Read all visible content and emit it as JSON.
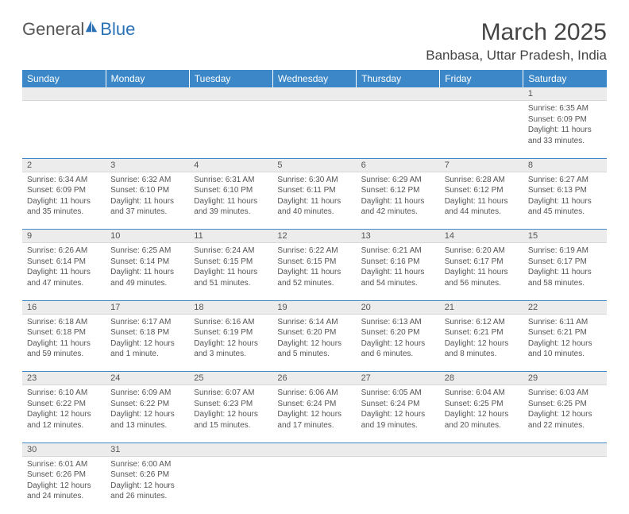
{
  "logo": {
    "general": "General",
    "blue": "Blue"
  },
  "title": "March 2025",
  "location": "Banbasa, Uttar Pradesh, India",
  "colors": {
    "header_bg": "#3b87c8",
    "header_text": "#ffffff",
    "daynum_bg": "#ececec",
    "border": "#3b87c8",
    "body_text": "#555555"
  },
  "dayHeaders": [
    "Sunday",
    "Monday",
    "Tuesday",
    "Wednesday",
    "Thursday",
    "Friday",
    "Saturday"
  ],
  "weeks": [
    [
      null,
      null,
      null,
      null,
      null,
      null,
      {
        "n": "1",
        "sr": "Sunrise: 6:35 AM",
        "ss": "Sunset: 6:09 PM",
        "d1": "Daylight: 11 hours",
        "d2": "and 33 minutes."
      }
    ],
    [
      {
        "n": "2",
        "sr": "Sunrise: 6:34 AM",
        "ss": "Sunset: 6:09 PM",
        "d1": "Daylight: 11 hours",
        "d2": "and 35 minutes."
      },
      {
        "n": "3",
        "sr": "Sunrise: 6:32 AM",
        "ss": "Sunset: 6:10 PM",
        "d1": "Daylight: 11 hours",
        "d2": "and 37 minutes."
      },
      {
        "n": "4",
        "sr": "Sunrise: 6:31 AM",
        "ss": "Sunset: 6:10 PM",
        "d1": "Daylight: 11 hours",
        "d2": "and 39 minutes."
      },
      {
        "n": "5",
        "sr": "Sunrise: 6:30 AM",
        "ss": "Sunset: 6:11 PM",
        "d1": "Daylight: 11 hours",
        "d2": "and 40 minutes."
      },
      {
        "n": "6",
        "sr": "Sunrise: 6:29 AM",
        "ss": "Sunset: 6:12 PM",
        "d1": "Daylight: 11 hours",
        "d2": "and 42 minutes."
      },
      {
        "n": "7",
        "sr": "Sunrise: 6:28 AM",
        "ss": "Sunset: 6:12 PM",
        "d1": "Daylight: 11 hours",
        "d2": "and 44 minutes."
      },
      {
        "n": "8",
        "sr": "Sunrise: 6:27 AM",
        "ss": "Sunset: 6:13 PM",
        "d1": "Daylight: 11 hours",
        "d2": "and 45 minutes."
      }
    ],
    [
      {
        "n": "9",
        "sr": "Sunrise: 6:26 AM",
        "ss": "Sunset: 6:14 PM",
        "d1": "Daylight: 11 hours",
        "d2": "and 47 minutes."
      },
      {
        "n": "10",
        "sr": "Sunrise: 6:25 AM",
        "ss": "Sunset: 6:14 PM",
        "d1": "Daylight: 11 hours",
        "d2": "and 49 minutes."
      },
      {
        "n": "11",
        "sr": "Sunrise: 6:24 AM",
        "ss": "Sunset: 6:15 PM",
        "d1": "Daylight: 11 hours",
        "d2": "and 51 minutes."
      },
      {
        "n": "12",
        "sr": "Sunrise: 6:22 AM",
        "ss": "Sunset: 6:15 PM",
        "d1": "Daylight: 11 hours",
        "d2": "and 52 minutes."
      },
      {
        "n": "13",
        "sr": "Sunrise: 6:21 AM",
        "ss": "Sunset: 6:16 PM",
        "d1": "Daylight: 11 hours",
        "d2": "and 54 minutes."
      },
      {
        "n": "14",
        "sr": "Sunrise: 6:20 AM",
        "ss": "Sunset: 6:17 PM",
        "d1": "Daylight: 11 hours",
        "d2": "and 56 minutes."
      },
      {
        "n": "15",
        "sr": "Sunrise: 6:19 AM",
        "ss": "Sunset: 6:17 PM",
        "d1": "Daylight: 11 hours",
        "d2": "and 58 minutes."
      }
    ],
    [
      {
        "n": "16",
        "sr": "Sunrise: 6:18 AM",
        "ss": "Sunset: 6:18 PM",
        "d1": "Daylight: 11 hours",
        "d2": "and 59 minutes."
      },
      {
        "n": "17",
        "sr": "Sunrise: 6:17 AM",
        "ss": "Sunset: 6:18 PM",
        "d1": "Daylight: 12 hours",
        "d2": "and 1 minute."
      },
      {
        "n": "18",
        "sr": "Sunrise: 6:16 AM",
        "ss": "Sunset: 6:19 PM",
        "d1": "Daylight: 12 hours",
        "d2": "and 3 minutes."
      },
      {
        "n": "19",
        "sr": "Sunrise: 6:14 AM",
        "ss": "Sunset: 6:20 PM",
        "d1": "Daylight: 12 hours",
        "d2": "and 5 minutes."
      },
      {
        "n": "20",
        "sr": "Sunrise: 6:13 AM",
        "ss": "Sunset: 6:20 PM",
        "d1": "Daylight: 12 hours",
        "d2": "and 6 minutes."
      },
      {
        "n": "21",
        "sr": "Sunrise: 6:12 AM",
        "ss": "Sunset: 6:21 PM",
        "d1": "Daylight: 12 hours",
        "d2": "and 8 minutes."
      },
      {
        "n": "22",
        "sr": "Sunrise: 6:11 AM",
        "ss": "Sunset: 6:21 PM",
        "d1": "Daylight: 12 hours",
        "d2": "and 10 minutes."
      }
    ],
    [
      {
        "n": "23",
        "sr": "Sunrise: 6:10 AM",
        "ss": "Sunset: 6:22 PM",
        "d1": "Daylight: 12 hours",
        "d2": "and 12 minutes."
      },
      {
        "n": "24",
        "sr": "Sunrise: 6:09 AM",
        "ss": "Sunset: 6:22 PM",
        "d1": "Daylight: 12 hours",
        "d2": "and 13 minutes."
      },
      {
        "n": "25",
        "sr": "Sunrise: 6:07 AM",
        "ss": "Sunset: 6:23 PM",
        "d1": "Daylight: 12 hours",
        "d2": "and 15 minutes."
      },
      {
        "n": "26",
        "sr": "Sunrise: 6:06 AM",
        "ss": "Sunset: 6:24 PM",
        "d1": "Daylight: 12 hours",
        "d2": "and 17 minutes."
      },
      {
        "n": "27",
        "sr": "Sunrise: 6:05 AM",
        "ss": "Sunset: 6:24 PM",
        "d1": "Daylight: 12 hours",
        "d2": "and 19 minutes."
      },
      {
        "n": "28",
        "sr": "Sunrise: 6:04 AM",
        "ss": "Sunset: 6:25 PM",
        "d1": "Daylight: 12 hours",
        "d2": "and 20 minutes."
      },
      {
        "n": "29",
        "sr": "Sunrise: 6:03 AM",
        "ss": "Sunset: 6:25 PM",
        "d1": "Daylight: 12 hours",
        "d2": "and 22 minutes."
      }
    ],
    [
      {
        "n": "30",
        "sr": "Sunrise: 6:01 AM",
        "ss": "Sunset: 6:26 PM",
        "d1": "Daylight: 12 hours",
        "d2": "and 24 minutes."
      },
      {
        "n": "31",
        "sr": "Sunrise: 6:00 AM",
        "ss": "Sunset: 6:26 PM",
        "d1": "Daylight: 12 hours",
        "d2": "and 26 minutes."
      },
      null,
      null,
      null,
      null,
      null
    ]
  ]
}
